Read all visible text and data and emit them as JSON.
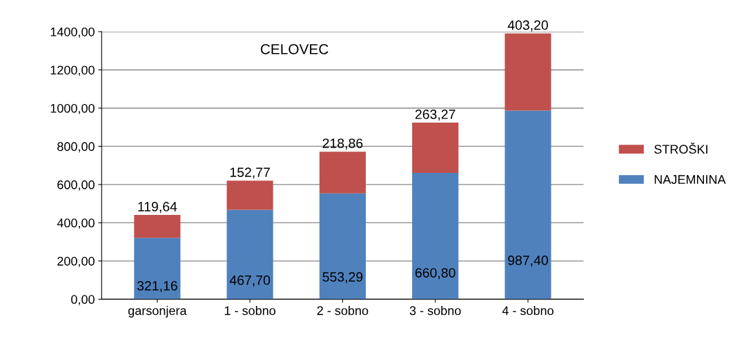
{
  "chart_data": {
    "type": "bar",
    "title": "CELOVEC",
    "stacked": true,
    "categories": [
      "garsonjera",
      "1 - sobno",
      "2 - sobno",
      "3 - sobno",
      "4 - sobno"
    ],
    "series": [
      {
        "name": "NAJEMNINA",
        "color": "#4f81bd",
        "values": [
          321.16,
          467.7,
          553.29,
          660.8,
          987.4
        ],
        "value_labels": [
          "321,16",
          "467,70",
          "553,29",
          "660,80",
          "987,40"
        ]
      },
      {
        "name": "STROŠKI",
        "color": "#c0504d",
        "values": [
          119.64,
          152.77,
          218.86,
          263.27,
          403.2
        ],
        "value_labels": [
          "119,64",
          "152,77",
          "218,86",
          "263,27",
          "403,20"
        ]
      }
    ],
    "ylim": [
      0,
      1400
    ],
    "yticks": [
      {
        "value": 0,
        "label": "0,00"
      },
      {
        "value": 200,
        "label": "200,00"
      },
      {
        "value": 400,
        "label": "400,00"
      },
      {
        "value": 600,
        "label": "600,00"
      },
      {
        "value": 800,
        "label": "800,00"
      },
      {
        "value": 1000,
        "label": "1000,00"
      },
      {
        "value": 1200,
        "label": "1200,00"
      },
      {
        "value": 1400,
        "label": "1400,00"
      }
    ],
    "grid": "y",
    "legend": "right"
  }
}
